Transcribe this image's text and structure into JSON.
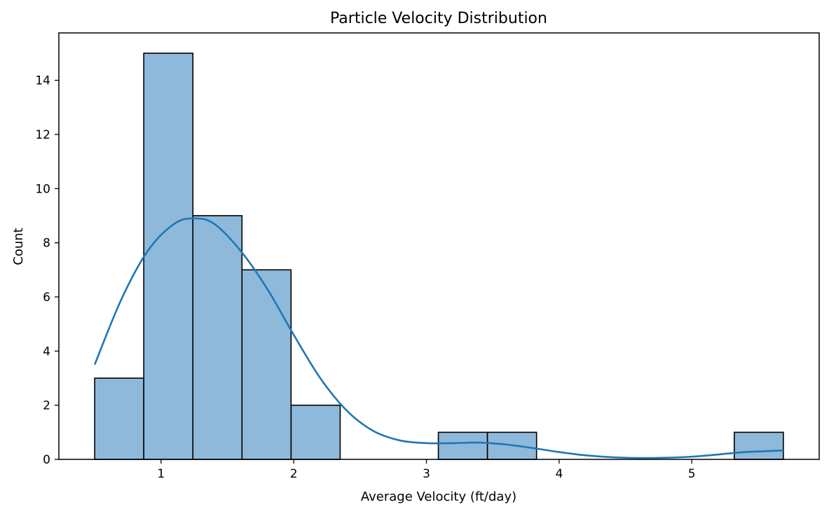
{
  "chart_data": {
    "type": "bar",
    "title": "Particle Velocity Distribution",
    "xlabel": "Average Velocity (ft/day)",
    "ylabel": "Count",
    "xlim": [
      0.23,
      5.96
    ],
    "ylim": [
      0,
      15.75
    ],
    "grid": false,
    "x_ticks": [
      1,
      2,
      3,
      4,
      5
    ],
    "y_ticks": [
      0,
      2,
      4,
      6,
      8,
      10,
      12,
      14
    ],
    "bar_color": "#8fb9da",
    "edge_color": "#000000",
    "bins": [
      {
        "start": 0.5,
        "end": 0.87,
        "count": 3
      },
      {
        "start": 0.87,
        "end": 1.24,
        "count": 15
      },
      {
        "start": 1.24,
        "end": 1.61,
        "count": 9
      },
      {
        "start": 1.61,
        "end": 1.98,
        "count": 7
      },
      {
        "start": 1.98,
        "end": 2.35,
        "count": 2
      },
      {
        "start": 2.35,
        "end": 2.72,
        "count": 0
      },
      {
        "start": 2.72,
        "end": 3.09,
        "count": 0
      },
      {
        "start": 3.09,
        "end": 3.46,
        "count": 1
      },
      {
        "start": 3.46,
        "end": 3.83,
        "count": 1
      },
      {
        "start": 3.83,
        "end": 4.2,
        "count": 0
      },
      {
        "start": 4.2,
        "end": 4.58,
        "count": 0
      },
      {
        "start": 4.58,
        "end": 4.95,
        "count": 0
      },
      {
        "start": 4.95,
        "end": 5.32,
        "count": 0
      },
      {
        "start": 5.32,
        "end": 5.69,
        "count": 1
      }
    ],
    "kde": {
      "color": "#1f77b4",
      "x": [
        0.5,
        0.7,
        0.9,
        1.1,
        1.25,
        1.4,
        1.6,
        1.8,
        2.0,
        2.2,
        2.4,
        2.6,
        2.8,
        3.0,
        3.2,
        3.4,
        3.6,
        3.8,
        4.0,
        4.2,
        4.4,
        4.6,
        4.8,
        5.0,
        5.2,
        5.4,
        5.69
      ],
      "y": [
        3.5,
        5.9,
        7.7,
        8.7,
        8.9,
        8.7,
        7.7,
        6.3,
        4.6,
        3.0,
        1.8,
        1.05,
        0.7,
        0.6,
        0.6,
        0.62,
        0.55,
        0.42,
        0.27,
        0.15,
        0.08,
        0.05,
        0.06,
        0.1,
        0.18,
        0.27,
        0.33
      ]
    }
  }
}
